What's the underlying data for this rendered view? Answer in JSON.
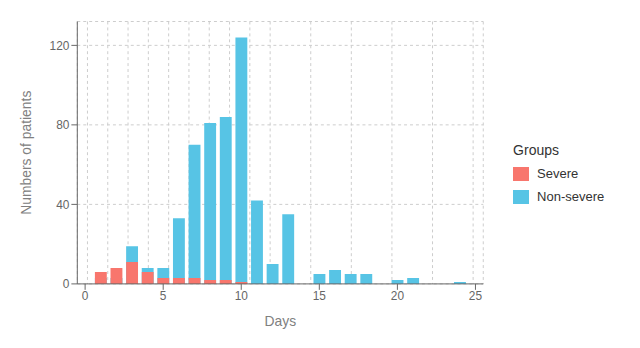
{
  "chart_data": {
    "type": "bar",
    "x": [
      1,
      2,
      3,
      4,
      5,
      6,
      7,
      8,
      9,
      10,
      11,
      12,
      13,
      15,
      16,
      17,
      18,
      20,
      21,
      24
    ],
    "series": [
      {
        "name": "Severe",
        "color": "#F8766D",
        "values": [
          6,
          8,
          11,
          6,
          3,
          3,
          3,
          2,
          2,
          1,
          null,
          null,
          null,
          null,
          null,
          null,
          null,
          null,
          null,
          null
        ]
      },
      {
        "name": "Non-severe",
        "color": "#57C4E5",
        "values": [
          3,
          3,
          19,
          8,
          8,
          33,
          70,
          81,
          84,
          124,
          42,
          10,
          35,
          5,
          7,
          5,
          5,
          2,
          3,
          1
        ]
      }
    ],
    "xlabel": "Days",
    "ylabel": "Numbers of patients",
    "legend_title": "Groups",
    "legend": "right",
    "xlim": [
      -0.5,
      25.5
    ],
    "ylim": [
      0,
      132
    ],
    "xticks": [
      0,
      5,
      10,
      15,
      20,
      25
    ],
    "yticks": [
      0,
      40,
      80,
      120
    ],
    "grid": true
  }
}
